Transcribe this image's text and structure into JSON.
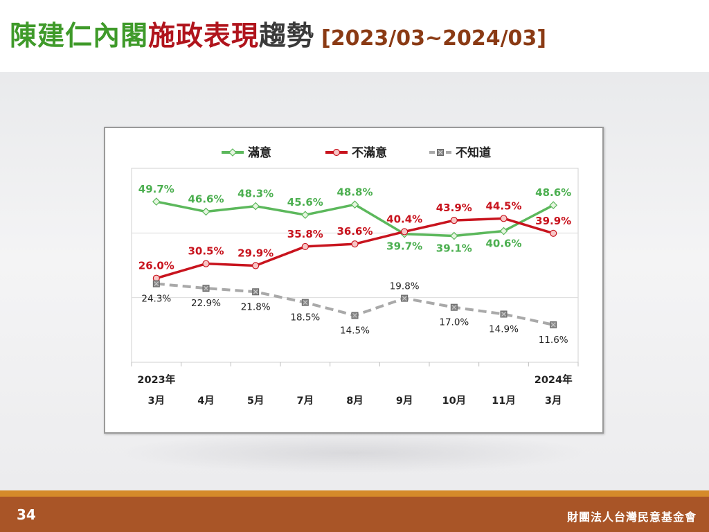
{
  "slide": {
    "title_part1": "陳建仁內閣",
    "title_part2": "施政表現",
    "title_part3": "趨勢",
    "title_range": "[2023/03~2024/03]",
    "page_number": "34",
    "organization": "財團法人台灣民意基金會"
  },
  "colors": {
    "satisfied": "#5cb85c",
    "dissatisfied": "#c8141e",
    "unknown": "#a9a9a9",
    "title_green": "#3f9a2a",
    "title_red": "#b0141c",
    "footer": "#a95527",
    "footer_accent": "#d58a2a"
  },
  "chart_data": {
    "type": "line",
    "title": "",
    "xlabel": "",
    "ylabel": "",
    "categories": [
      "3月",
      "4月",
      "5月",
      "7月",
      "8月",
      "9月",
      "10月",
      "11月",
      "3月"
    ],
    "category_years": [
      "2023年",
      "",
      "",
      "",
      "",
      "",
      "",
      "",
      "2024年"
    ],
    "ylim": [
      0,
      60
    ],
    "legend_position": "top-center",
    "grid": true,
    "series": [
      {
        "name": "滿意",
        "values": [
          49.7,
          46.6,
          48.3,
          45.6,
          48.8,
          39.7,
          39.1,
          40.6,
          48.6
        ],
        "labels": [
          "49.7%",
          "46.6%",
          "48.3%",
          "45.6%",
          "48.8%",
          "39.7%",
          "39.1%",
          "40.6%",
          "48.6%"
        ]
      },
      {
        "name": "不滿意",
        "values": [
          26.0,
          30.5,
          29.9,
          35.8,
          36.6,
          40.4,
          43.9,
          44.5,
          39.9
        ],
        "labels": [
          "26.0%",
          "30.5%",
          "29.9%",
          "35.8%",
          "36.6%",
          "40.4%",
          "43.9%",
          "44.5%",
          "39.9%"
        ]
      },
      {
        "name": "不知道",
        "values": [
          24.3,
          22.9,
          21.8,
          18.5,
          14.5,
          19.8,
          17.0,
          14.9,
          11.6
        ],
        "labels": [
          "24.3%",
          "22.9%",
          "21.8%",
          "18.5%",
          "14.5%",
          "19.8%",
          "17.0%",
          "14.9%",
          "11.6%"
        ]
      }
    ]
  }
}
